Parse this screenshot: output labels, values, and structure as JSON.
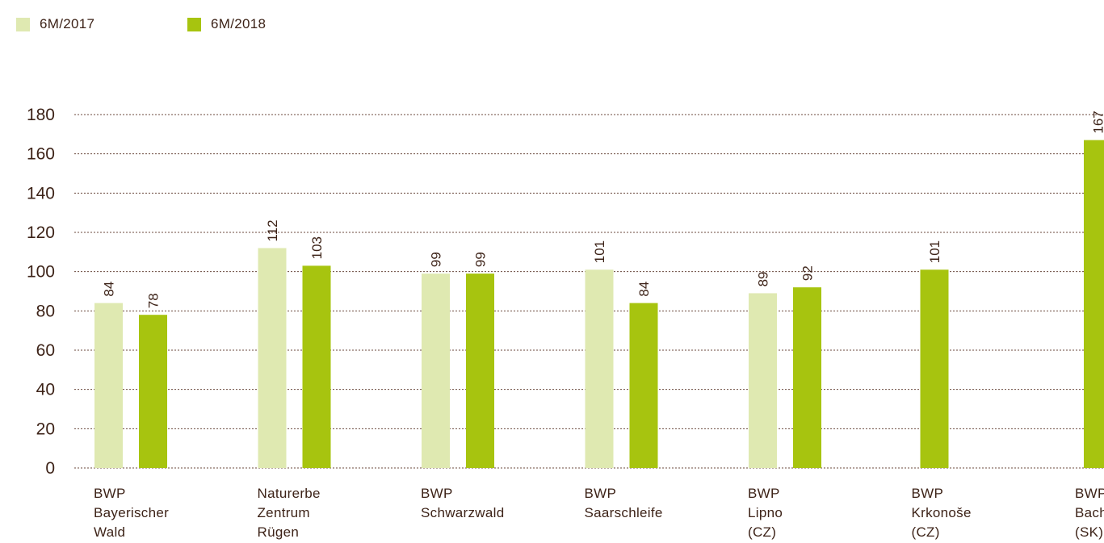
{
  "chart_data": {
    "type": "bar",
    "series": [
      {
        "name": "6M/2017",
        "color": "#dfe9b1",
        "values": [
          84,
          112,
          99,
          101,
          89,
          null,
          null
        ]
      },
      {
        "name": "6M/2018",
        "color": "#a7c40f",
        "values": [
          78,
          103,
          99,
          84,
          92,
          101,
          167
        ]
      }
    ],
    "categories": [
      [
        "BWP",
        "Bayerischer",
        "Wald"
      ],
      [
        "Naturerbe",
        "Zentrum",
        "Rügen"
      ],
      [
        "BWP",
        "Schwarzwald"
      ],
      [
        "BWP",
        "Saarschleife"
      ],
      [
        "BWP",
        "Lipno",
        "(CZ)"
      ],
      [
        "BWP",
        "Krkonoše",
        "(CZ)"
      ],
      [
        "BWP",
        "Bachledka",
        "(SK)"
      ]
    ],
    "y_ticks": [
      "0",
      "20",
      "40",
      "60",
      "80",
      "100",
      "120",
      "140",
      "160",
      "180"
    ],
    "ylim": [
      0,
      180
    ],
    "grid": true,
    "legend_position": "top-left",
    "title": "",
    "xlabel": "",
    "ylabel": ""
  }
}
